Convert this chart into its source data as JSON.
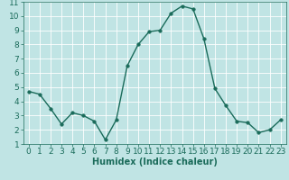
{
  "x": [
    0,
    1,
    2,
    3,
    4,
    5,
    6,
    7,
    8,
    9,
    10,
    11,
    12,
    13,
    14,
    15,
    16,
    17,
    18,
    19,
    20,
    21,
    22,
    23
  ],
  "y": [
    4.7,
    4.5,
    3.5,
    2.4,
    3.2,
    3.0,
    2.6,
    1.3,
    2.7,
    6.5,
    8.0,
    8.9,
    9.0,
    10.2,
    10.7,
    10.5,
    8.4,
    4.9,
    3.7,
    2.6,
    2.5,
    1.8,
    2.0,
    2.7
  ],
  "line_color": "#1a6b5a",
  "marker": "o",
  "markersize": 2.5,
  "linewidth": 1.0,
  "bg_color": "#c0e4e4",
  "grid_color": "#ffffff",
  "xlabel": "Humidex (Indice chaleur)",
  "xlabel_fontsize": 7,
  "tick_fontsize": 6.5,
  "xlim": [
    -0.5,
    23.5
  ],
  "ylim": [
    1,
    11
  ],
  "yticks": [
    1,
    2,
    3,
    4,
    5,
    6,
    7,
    8,
    9,
    10,
    11
  ],
  "xticks": [
    0,
    1,
    2,
    3,
    4,
    5,
    6,
    7,
    8,
    9,
    10,
    11,
    12,
    13,
    14,
    15,
    16,
    17,
    18,
    19,
    20,
    21,
    22,
    23
  ]
}
